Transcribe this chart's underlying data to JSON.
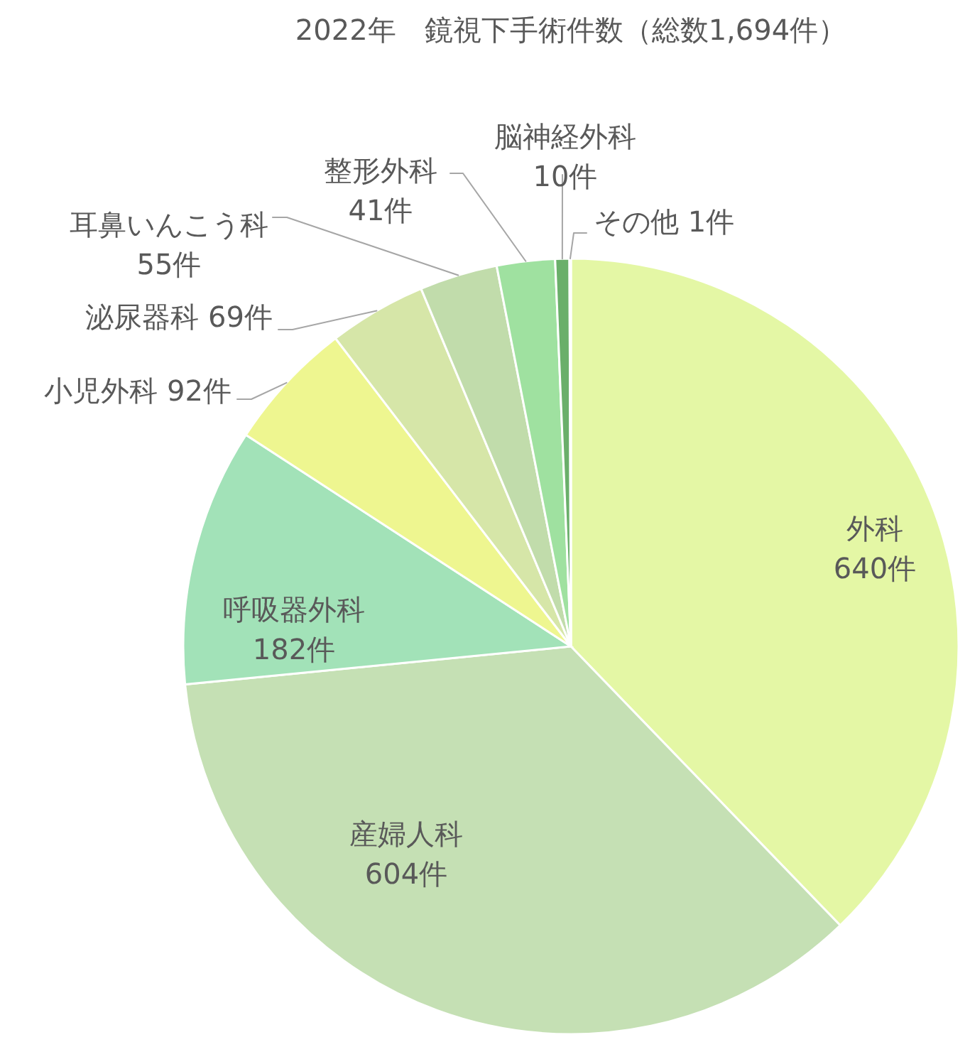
{
  "chart_data": {
    "type": "pie",
    "title": "2022年　鏡視下手術件数（総数1,694件）",
    "categories": [
      "外科",
      "産婦人科",
      "呼吸器外科",
      "小児外科",
      "泌尿器科",
      "耳鼻いんこう科",
      "整形外科",
      "脳神経外科",
      "その他"
    ],
    "values": [
      640,
      604,
      182,
      92,
      69,
      55,
      41,
      10,
      1
    ],
    "value_labels": [
      "640件",
      "604件",
      "182件",
      "92件",
      "69件",
      "55件",
      "41件",
      "10件",
      "1件"
    ],
    "colors": [
      "#e4f7a5",
      "#c5e0b4",
      "#a2e2b8",
      "#eef690",
      "#d6e6a8",
      "#c1dcab",
      "#9fe1a0",
      "#6aaf6a",
      "#e2f0d9"
    ]
  }
}
